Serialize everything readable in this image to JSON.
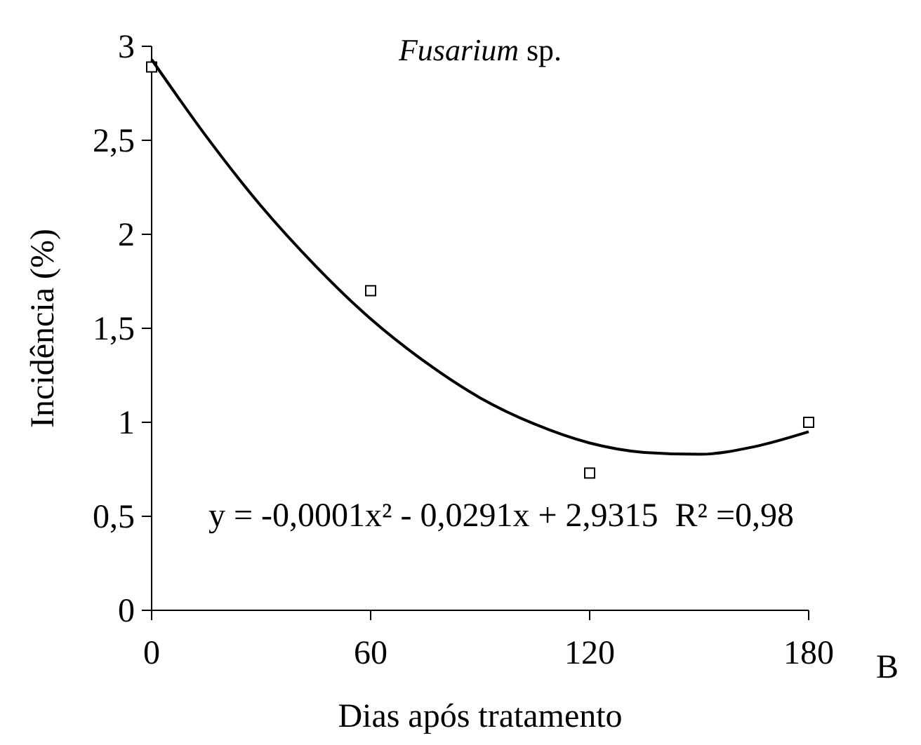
{
  "chart_data": {
    "type": "scatter",
    "title": "Fusarium sp.",
    "xlabel": "Dias após tratamento",
    "ylabel": "Incidência (%)",
    "annotations": [
      "y = -0,0001x² - 0,0291x + 2,9315  R² =0,98",
      "B"
    ],
    "xlim": [
      0,
      180
    ],
    "xticks": [
      0,
      60,
      120,
      180
    ],
    "ylim": [
      0,
      3
    ],
    "yticks": [
      0,
      {
        "value": 0.5,
        "label": "0,5"
      },
      1,
      {
        "value": 1.5,
        "label": "1,5"
      },
      2,
      {
        "value": 2.5,
        "label": "2,5"
      },
      3
    ],
    "grid": false,
    "marker": "square",
    "series": [
      {
        "color": "#000000",
        "x": [
          0,
          60,
          120,
          180
        ],
        "values": [
          2.89,
          1.7,
          0.73,
          1.0
        ]
      },
      {
        "type": "line",
        "color": "#000000",
        "marker": "none",
        "line_style": "solid",
        "x": [
          0,
          15,
          30,
          45,
          60,
          75,
          90,
          105,
          120,
          135,
          150,
          165,
          180
        ],
        "values": [
          2.93,
          2.52,
          2.15,
          1.83,
          1.55,
          1.32,
          1.13,
          0.99,
          0.89,
          0.84,
          0.83,
          0.87,
          0.95
        ]
      }
    ]
  }
}
